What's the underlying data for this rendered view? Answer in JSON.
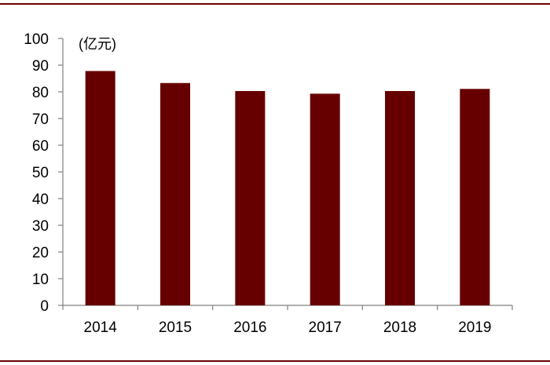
{
  "chart_data": {
    "type": "bar",
    "unit": "(亿元)",
    "categories": [
      "2014",
      "2015",
      "2016",
      "2017",
      "2018",
      "2019"
    ],
    "values": [
      87.8,
      83.3,
      80.3,
      79.3,
      80.3,
      81.1
    ],
    "ylim": [
      0,
      100
    ],
    "yticks": [
      "0",
      "10",
      "20",
      "30",
      "40",
      "50",
      "60",
      "70",
      "80",
      "90",
      "100"
    ],
    "grid": false,
    "legend": "none",
    "bar_color": "#660000",
    "axis_color": "#808080",
    "rule_color": "#6b0000"
  }
}
